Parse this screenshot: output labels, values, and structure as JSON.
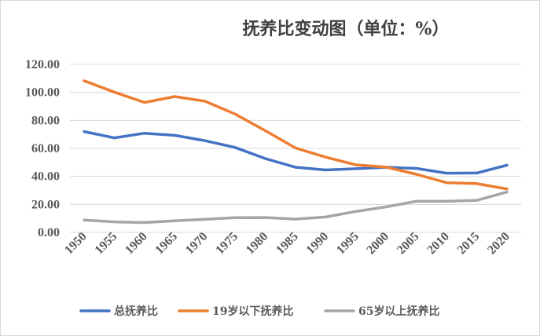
{
  "chart_data": {
    "type": "line",
    "title": "抚养比变动图（单位：%）",
    "xlabel": "",
    "ylabel": "",
    "categories": [
      "1950",
      "1955",
      "1960",
      "1965",
      "1970",
      "1975",
      "1980",
      "1985",
      "1990",
      "1995",
      "2000",
      "2005",
      "2010",
      "2015",
      "2020"
    ],
    "y_ticks": [
      "0.00",
      "20.00",
      "40.00",
      "60.00",
      "80.00",
      "100.00",
      "120.00"
    ],
    "ylim": [
      0,
      120
    ],
    "grid": true,
    "legend_position": "bottom",
    "series": [
      {
        "name": "总抚养比",
        "color": "#4472C4",
        "values": [
          72.0,
          67.5,
          70.8,
          69.3,
          65.5,
          60.7,
          52.7,
          46.5,
          44.6,
          45.5,
          46.5,
          45.7,
          42.3,
          42.4,
          48.0
        ]
      },
      {
        "name": "19岁以下抚养比",
        "color": "#ED7D31",
        "values": [
          108.3,
          100.2,
          92.8,
          97.0,
          93.7,
          84.5,
          72.6,
          60.3,
          53.7,
          48.2,
          46.6,
          41.5,
          35.5,
          34.8,
          31.0
        ]
      },
      {
        "name": "65岁以上抚养比",
        "color": "#A5A5A5",
        "values": [
          8.8,
          7.5,
          7.0,
          8.3,
          9.3,
          10.5,
          10.6,
          9.5,
          11.0,
          15.0,
          18.2,
          22.2,
          22.2,
          22.9,
          28.8
        ]
      }
    ]
  }
}
